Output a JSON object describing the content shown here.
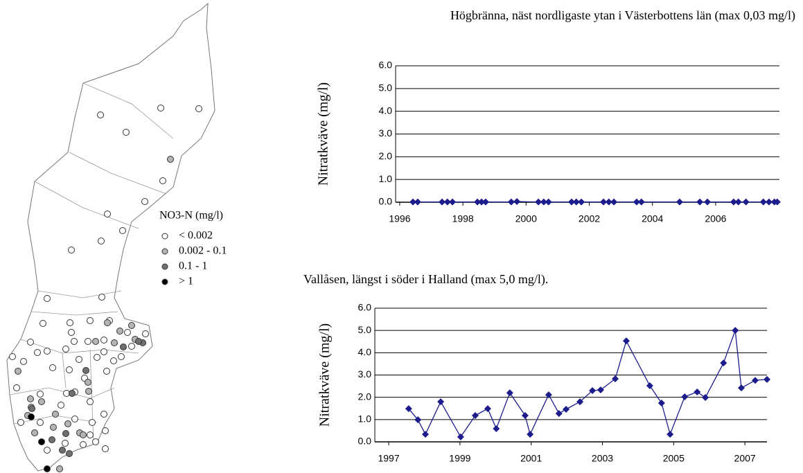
{
  "map_legend": {
    "title": "NO3-N (mg/l)",
    "classes": [
      {
        "label": "< 0.002",
        "color": "#ffffff"
      },
      {
        "label": "0.002 - 0.1",
        "color": "#b4b4b4"
      },
      {
        "label": "0.1 - 1",
        "color": "#707070"
      },
      {
        "label": "> 1",
        "color": "#000000"
      }
    ]
  },
  "chart_data": [
    {
      "type": "line",
      "title": "Högbränna, näst nordligaste ytan i Västerbottens län (max 0,03 mg/l)",
      "y_label": "Nitratkväve (mg/l)",
      "color": "#1c1c8c",
      "grid": true,
      "x": [
        1996.42,
        1996.57,
        1997.34,
        1997.51,
        1997.67,
        1998.46,
        1998.59,
        1998.72,
        1999.53,
        1999.71,
        2000.39,
        2000.56,
        2000.71,
        2001.44,
        2001.59,
        2001.75,
        2002.45,
        2002.62,
        2002.78,
        2003.5,
        2003.65,
        2004.86,
        2005.5,
        2005.74,
        2006.57,
        2006.72,
        2006.96,
        2007.51,
        2007.69,
        2007.86,
        2007.95
      ],
      "values": [
        0.01,
        0.01,
        0.01,
        0.01,
        0.01,
        0.01,
        0.01,
        0.01,
        0.01,
        0.03,
        0.01,
        0.01,
        0.01,
        0.01,
        0.01,
        0.01,
        0.01,
        0.01,
        0.01,
        0.01,
        0.01,
        0.01,
        0.01,
        0.01,
        0.01,
        0.01,
        0.01,
        0.01,
        0.01,
        0.01,
        0.01
      ],
      "xlim": [
        1995.87,
        2008.02
      ],
      "xticks": [
        1996,
        1998,
        2000,
        2002,
        2004,
        2006
      ],
      "ylim": [
        0,
        6
      ],
      "yticks": [
        {
          "value": 0,
          "label": "0.0"
        },
        {
          "value": 1,
          "label": "1.0"
        },
        {
          "value": 2,
          "label": "2.0"
        },
        {
          "value": 3,
          "label": "3.0"
        },
        {
          "value": 4,
          "label": "4.0"
        },
        {
          "value": 5,
          "label": "5.0"
        },
        {
          "value": 6,
          "label": "6.0"
        }
      ]
    },
    {
      "type": "line",
      "title": "Vallåsen, längst i söder i Halland (max 5,0 mg/l).",
      "y_label": "Nitratkväve (mg/l)",
      "color": "#1c1c8c",
      "grid": true,
      "x": [
        1997.56,
        1997.82,
        1998.03,
        1998.46,
        1999.02,
        1999.43,
        1999.78,
        2000.02,
        2000.4,
        2000.83,
        2000.97,
        2001.49,
        2001.78,
        2001.98,
        2002.37,
        2002.72,
        2002.95,
        2003.36,
        2003.67,
        2004.33,
        2004.66,
        2004.9,
        2005.31,
        2005.66,
        2005.89,
        2006.4,
        2006.73,
        2006.9,
        2007.29,
        2007.62
      ],
      "values": [
        1.49,
        0.99,
        0.34,
        1.8,
        0.22,
        1.18,
        1.49,
        0.59,
        2.2,
        1.18,
        0.34,
        2.11,
        1.27,
        1.46,
        1.8,
        2.3,
        2.33,
        2.83,
        4.53,
        2.52,
        1.74,
        0.34,
        2.02,
        2.24,
        1.99,
        3.54,
        5.0,
        2.42,
        2.76,
        2.8
      ],
      "xlim": [
        1996.61,
        2007.62
      ],
      "xticks": [
        1997,
        1999,
        2001,
        2003,
        2005,
        2007
      ],
      "ylim": [
        0,
        6
      ],
      "yticks": [
        {
          "value": 0,
          "label": "0.0"
        },
        {
          "value": 1,
          "label": "1.0"
        },
        {
          "value": 2,
          "label": "2.0"
        },
        {
          "value": 3,
          "label": "3.0"
        },
        {
          "value": 4,
          "label": "4.0"
        },
        {
          "value": 5,
          "label": "5.0"
        },
        {
          "value": 6,
          "label": "6.0"
        }
      ]
    }
  ]
}
